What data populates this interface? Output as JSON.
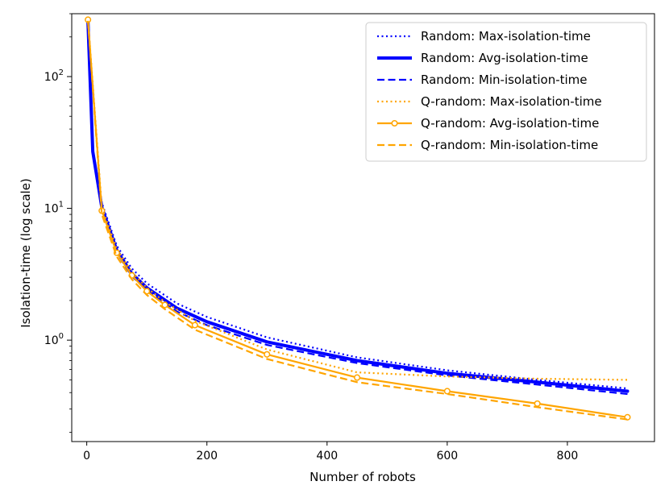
{
  "chart_data": {
    "type": "line",
    "xlabel": "Number of robots",
    "ylabel": "Isolation-time (log scale)",
    "yscale": "log",
    "xlim": [
      -25,
      945
    ],
    "ylim": [
      0.17,
      300
    ],
    "x_ticks": [
      {
        "value": 0,
        "label": "0"
      },
      {
        "value": 200,
        "label": "200"
      },
      {
        "value": 400,
        "label": "400"
      },
      {
        "value": 600,
        "label": "600"
      },
      {
        "value": 800,
        "label": "800"
      }
    ],
    "y_ticks": [
      {
        "value": 1,
        "base": "10",
        "exp": "0"
      },
      {
        "value": 10,
        "base": "10",
        "exp": "1"
      },
      {
        "value": 100,
        "base": "10",
        "exp": "2"
      }
    ],
    "legend_position": "top-right",
    "series": [
      {
        "name": "Random: Max-isolation-time",
        "color": "#0000ff",
        "style": "dotted",
        "width": 2.2,
        "marker": "",
        "x": [
          2,
          10,
          25,
          50,
          75,
          100,
          150,
          200,
          300,
          450,
          600,
          750,
          900
        ],
        "y": [
          270,
          28,
          11.0,
          5.2,
          3.5,
          2.7,
          1.9,
          1.5,
          1.05,
          0.74,
          0.59,
          0.5,
          0.43
        ]
      },
      {
        "name": "Random: Avg-isolation-time",
        "color": "#0000ff",
        "style": "solid",
        "width": 4,
        "marker": "",
        "x": [
          2,
          10,
          25,
          50,
          75,
          100,
          150,
          200,
          300,
          450,
          600,
          750,
          900
        ],
        "y": [
          265,
          27,
          10.2,
          4.8,
          3.2,
          2.5,
          1.75,
          1.38,
          0.97,
          0.7,
          0.56,
          0.48,
          0.41
        ]
      },
      {
        "name": "Random: Min-isolation-time",
        "color": "#0000ff",
        "style": "dashed",
        "width": 2.2,
        "marker": "",
        "x": [
          2,
          10,
          25,
          50,
          75,
          100,
          150,
          200,
          300,
          450,
          600,
          750,
          900
        ],
        "y": [
          260,
          26,
          9.8,
          4.6,
          3.05,
          2.4,
          1.65,
          1.3,
          0.92,
          0.67,
          0.54,
          0.46,
          0.39
        ]
      },
      {
        "name": "Q-random: Max-isolation-time",
        "color": "#ffa500",
        "style": "dotted",
        "width": 2.2,
        "marker": "",
        "x": [
          2,
          25,
          50,
          75,
          100,
          130,
          180,
          300,
          450,
          600,
          750,
          900
        ],
        "y": [
          275,
          10.2,
          4.9,
          3.3,
          2.5,
          1.95,
          1.4,
          0.85,
          0.57,
          0.53,
          0.51,
          0.5
        ]
      },
      {
        "name": "Q-random: Avg-isolation-time",
        "color": "#ffa500",
        "style": "solid",
        "width": 2.2,
        "marker": "circle",
        "x": [
          2,
          25,
          50,
          75,
          100,
          130,
          180,
          300,
          450,
          600,
          750,
          900
        ],
        "y": [
          270,
          9.6,
          4.6,
          3.1,
          2.35,
          1.85,
          1.3,
          0.78,
          0.52,
          0.41,
          0.33,
          0.26
        ]
      },
      {
        "name": "Q-random: Min-isolation-time",
        "color": "#ffa500",
        "style": "dashed",
        "width": 2.2,
        "marker": "",
        "x": [
          2,
          25,
          50,
          75,
          100,
          130,
          180,
          300,
          450,
          600,
          750,
          900
        ],
        "y": [
          265,
          9.0,
          4.3,
          2.9,
          2.2,
          1.72,
          1.2,
          0.72,
          0.48,
          0.39,
          0.31,
          0.25
        ]
      }
    ]
  }
}
